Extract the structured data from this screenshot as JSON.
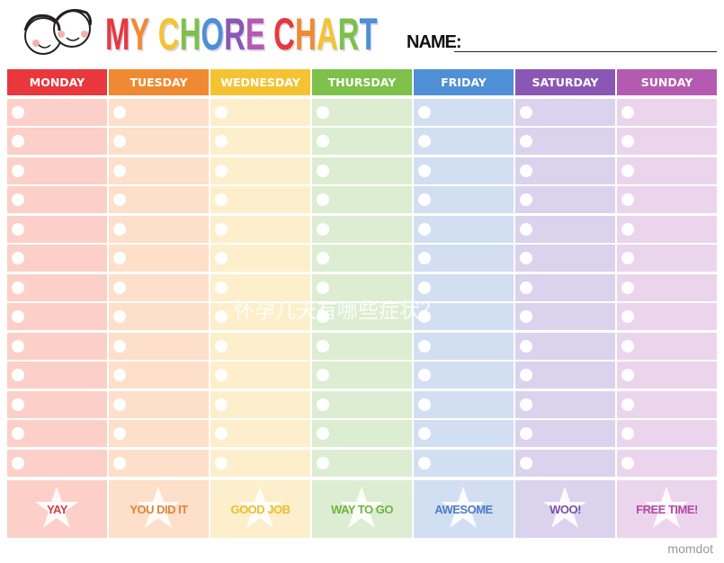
{
  "title": {
    "letters": [
      {
        "ch": "M",
        "color": "#e8383d"
      },
      {
        "ch": "Y",
        "color": "#f08a32"
      },
      {
        "ch": " ",
        "color": "#000"
      },
      {
        "ch": "C",
        "color": "#f5c332"
      },
      {
        "ch": "H",
        "color": "#7dc04a"
      },
      {
        "ch": "O",
        "color": "#4f8fd6"
      },
      {
        "ch": "R",
        "color": "#8a58b4"
      },
      {
        "ch": "E",
        "color": "#b45ab0"
      },
      {
        "ch": " ",
        "color": "#000"
      },
      {
        "ch": "C",
        "color": "#e8383d"
      },
      {
        "ch": "H",
        "color": "#f08a32"
      },
      {
        "ch": "A",
        "color": "#f5c332"
      },
      {
        "ch": "R",
        "color": "#7dc04a"
      },
      {
        "ch": "T",
        "color": "#4f8fd6"
      }
    ]
  },
  "name_label": "NAME:",
  "rows": 13,
  "days": [
    {
      "label": "MONDAY",
      "color": "#e8383d",
      "light": "#fcd0c8",
      "reward": "YAY",
      "reward_color": "#c8424a"
    },
    {
      "label": "TUESDAY",
      "color": "#f08a32",
      "light": "#fddfca",
      "reward": "YOU DID IT",
      "reward_color": "#e0853a"
    },
    {
      "label": "WEDNESDAY",
      "color": "#f5c332",
      "light": "#fdefcb",
      "reward": "GOOD JOB",
      "reward_color": "#eebc2c"
    },
    {
      "label": "THURSDAY",
      "color": "#7dc04a",
      "light": "#dcedd2",
      "reward": "WAY TO GO",
      "reward_color": "#6fb43e"
    },
    {
      "label": "FRIDAY",
      "color": "#4f8fd6",
      "light": "#d2def2",
      "reward": "AWESOME",
      "reward_color": "#4a7cc8"
    },
    {
      "label": "SATURDAY",
      "color": "#8a58b4",
      "light": "#dbd2ee",
      "reward": "WOO!",
      "reward_color": "#7c4ea6"
    },
    {
      "label": "SUNDAY",
      "color": "#b45ab0",
      "light": "#ebd5ec",
      "reward": "FREE TIME!",
      "reward_color": "#b14aa8"
    }
  ],
  "brand": "momdot",
  "watermark": "怀孕几天有哪些症状？"
}
